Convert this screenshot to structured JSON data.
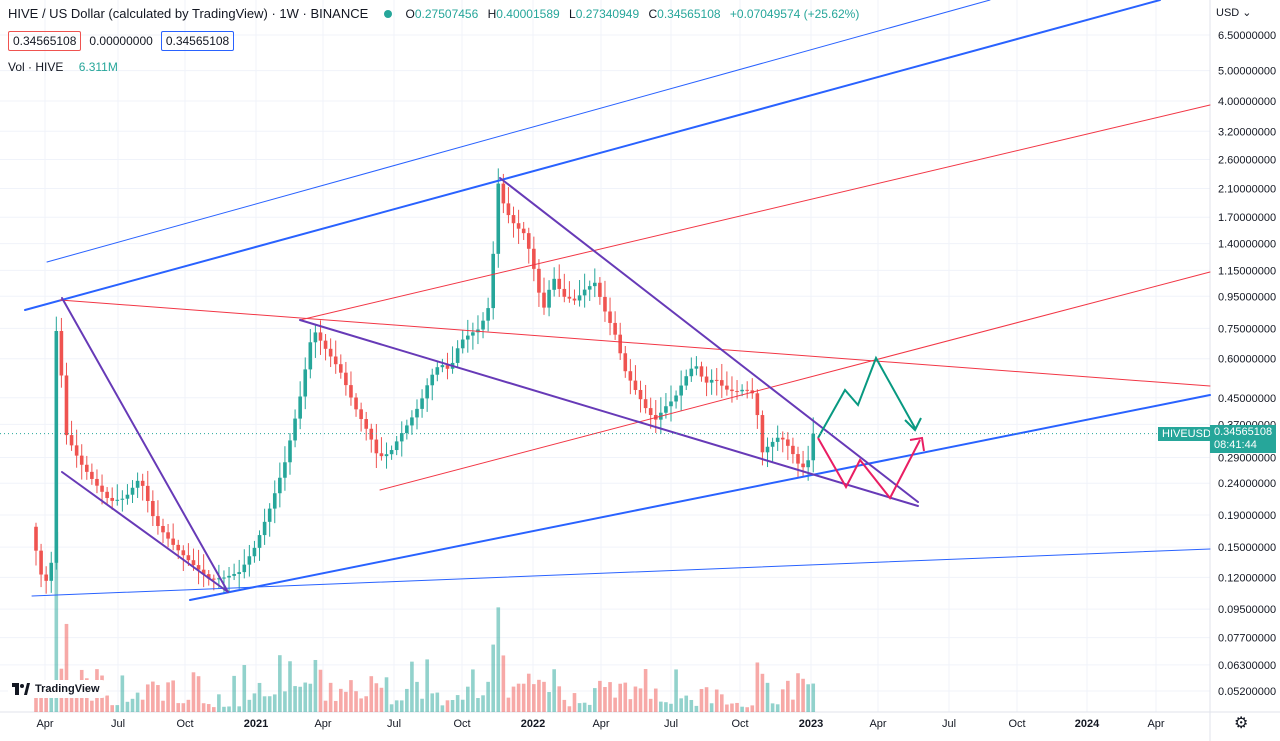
{
  "header": {
    "title": "HIVE / US Dollar (calculated by TradingView) · 1W · BINANCE",
    "ohlc": [
      {
        "key": "O",
        "value": "0.27507456"
      },
      {
        "key": "H",
        "value": "0.40001589"
      },
      {
        "key": "L",
        "value": "0.27340949"
      },
      {
        "key": "C",
        "value": "0.34565108"
      }
    ],
    "change": "+0.07049574 (+25.62%)"
  },
  "trade": {
    "sell_price": "0.34565108",
    "spread": "0.00000000",
    "buy_price": "0.34565108"
  },
  "volume": {
    "label": "Vol · HIVE",
    "value": "6.311M"
  },
  "price_axis": {
    "currency": "USD",
    "labels": [
      "6.50000000",
      "5.00000000",
      "4.00000000",
      "3.20000000",
      "2.60000000",
      "2.10000000",
      "1.70000000",
      "1.40000000",
      "1.15000000",
      "0.95000000",
      "0.75000000",
      "0.60000000",
      "0.45000000",
      "0.37000000",
      "0.29000000",
      "0.24000000",
      "0.19000000",
      "0.15000000",
      "0.12000000",
      "0.09500000",
      "0.07700000",
      "0.06300000",
      "0.05200000"
    ]
  },
  "time_axis": {
    "labels": [
      "Apr",
      "Jul",
      "Oct",
      "2021",
      "Apr",
      "Jul",
      "Oct",
      "2022",
      "Apr",
      "Jul",
      "Oct",
      "2023",
      "Apr",
      "Jul",
      "Oct",
      "2024",
      "Apr"
    ]
  },
  "last_price": {
    "symbol": "HIVEUSD",
    "price": "0.34565108",
    "countdown": "08:41:44"
  },
  "branding": {
    "logo_text": "TradingView"
  },
  "colors": {
    "up": "#26a69a",
    "down": "#ef5350",
    "channel_blue": "#2962ff",
    "channel_red": "#f23645",
    "wedge_purple": "#673ab7",
    "bull_path": "#089981",
    "bear_path": "#e91e63"
  },
  "icons": {
    "currency_dropdown": "chevron-down-icon",
    "settings": "gear-icon",
    "market_status": "status-dot-icon"
  },
  "chart_data": {
    "type": "candlestick",
    "title": "HIVE / US Dollar (calculated by TradingView) · 1W · BINANCE",
    "xlabel": "",
    "ylabel": "",
    "y_scale": "log",
    "ylim": [
      0.045,
      7.0
    ],
    "x_range": [
      "2020-03",
      "2024-06"
    ],
    "grid": true,
    "last_close": 0.34565108,
    "weekly_close_series": [
      {
        "date": "2020-03",
        "close": 0.2
      },
      {
        "date": "2020-04",
        "close": 0.115
      },
      {
        "date": "2020-04",
        "close": 0.9
      },
      {
        "date": "2020-05",
        "close": 0.3
      },
      {
        "date": "2020-06",
        "close": 0.26
      },
      {
        "date": "2020-07",
        "close": 0.21
      },
      {
        "date": "2020-08",
        "close": 0.215
      },
      {
        "date": "2020-09",
        "close": 0.25
      },
      {
        "date": "2020-10",
        "close": 0.18
      },
      {
        "date": "2020-11",
        "close": 0.15
      },
      {
        "date": "2020-12",
        "close": 0.12
      },
      {
        "date": "2021-01",
        "close": 0.13
      },
      {
        "date": "2021-02",
        "close": 0.28
      },
      {
        "date": "2021-03",
        "close": 0.75
      },
      {
        "date": "2021-04",
        "close": 0.55
      },
      {
        "date": "2021-05",
        "close": 0.45
      },
      {
        "date": "2021-06",
        "close": 0.29
      },
      {
        "date": "2021-07",
        "close": 0.32
      },
      {
        "date": "2021-08",
        "close": 0.45
      },
      {
        "date": "2021-09",
        "close": 0.6
      },
      {
        "date": "2021-10",
        "close": 0.85
      },
      {
        "date": "2021-11",
        "close": 2.2
      },
      {
        "date": "2021-12",
        "close": 1.6
      },
      {
        "date": "2022-01",
        "close": 1.1
      },
      {
        "date": "2022-02",
        "close": 0.95
      },
      {
        "date": "2022-03",
        "close": 1.0
      },
      {
        "date": "2022-04",
        "close": 0.85
      },
      {
        "date": "2022-05",
        "close": 0.5
      },
      {
        "date": "2022-06",
        "close": 0.38
      },
      {
        "date": "2022-07",
        "close": 0.5
      },
      {
        "date": "2022-08",
        "close": 0.55
      },
      {
        "date": "2022-09",
        "close": 0.48
      },
      {
        "date": "2022-10",
        "close": 0.45
      },
      {
        "date": "2022-11",
        "close": 0.3
      },
      {
        "date": "2022-12",
        "close": 0.27
      },
      {
        "date": "2023-01",
        "close": 0.34565108
      }
    ]
  }
}
